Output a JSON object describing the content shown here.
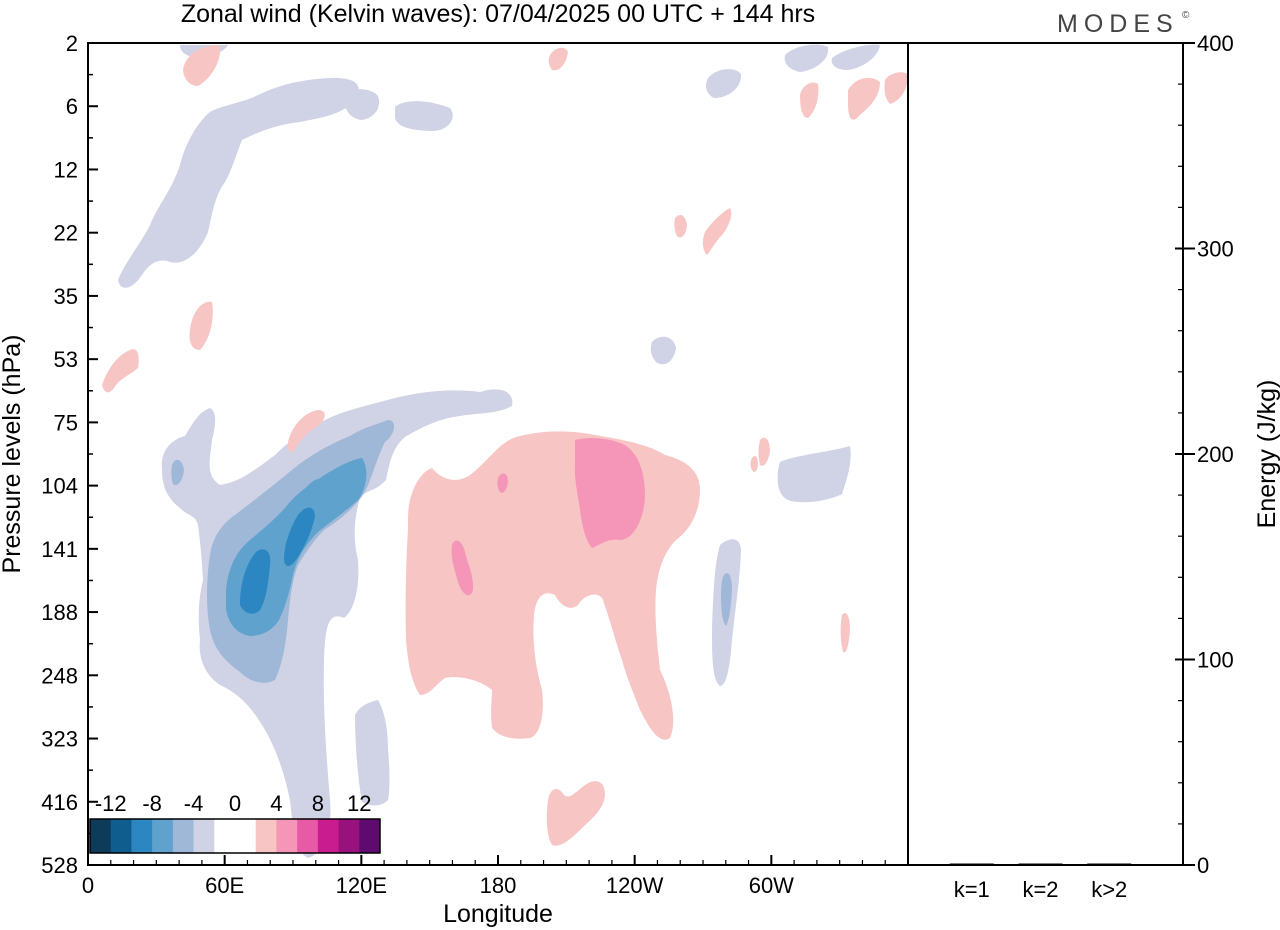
{
  "brand": "MODES",
  "brand_mark": "©",
  "colors": {
    "neg4": "#d0d2e6",
    "neg6": "#9fb8d8",
    "neg8": "#5fa2cd",
    "neg10": "#2c86c1",
    "pos4": "#f7c6c4",
    "pos6": "#f596b8",
    "axis": "#000000",
    "colorbar": [
      "#0d3b5a",
      "#0f5c8e",
      "#2c86c1",
      "#5fa2cd",
      "#9fb8d8",
      "#d0d2e6",
      "#ffffff",
      "#ffffff",
      "#f7c6c4",
      "#f596b8",
      "#e65aa6",
      "#c91d8f",
      "#98127e",
      "#5e0a6e"
    ]
  },
  "chart_data": [
    {
      "type": "heatmap",
      "title": "Zonal wind (Kelvin waves):  07/04/2025  00 UTC  + 144 hrs",
      "xlabel": "Longitude",
      "ylabel": "Pressure levels (hPa)",
      "x_tick_labels": [
        "0",
        "60E",
        "120E",
        "180",
        "120W",
        "60W"
      ],
      "x_ticks_deg": [
        0,
        60,
        120,
        180,
        240,
        300
      ],
      "xlim": [
        0,
        360
      ],
      "y_tick_labels": [
        "2",
        "6",
        "12",
        "22",
        "35",
        "53",
        "75",
        "104",
        "141",
        "188",
        "248",
        "323",
        "416",
        "528"
      ],
      "colorbar": {
        "labels": [
          "-12",
          "-8",
          "-4",
          "0",
          "4",
          "8",
          "12"
        ],
        "levels": [
          -14,
          -12,
          -10,
          -8,
          -6,
          -4,
          -2,
          0,
          2,
          4,
          6,
          8,
          10,
          12,
          14
        ]
      },
      "features": [
        {
          "name": "negative anomaly",
          "sign": "negative",
          "peak": -10,
          "lon_range": [
            50,
            130
          ],
          "pressure_range": [
            75,
            400
          ]
        },
        {
          "name": "positive anomaly",
          "sign": "positive",
          "peak": 6,
          "lon_range": [
            140,
            265
          ],
          "pressure_range": [
            75,
            323
          ]
        },
        {
          "name": "stratospheric negative band",
          "sign": "negative",
          "peak": -4,
          "lon_range": [
            15,
            160
          ],
          "pressure_range": [
            2,
            30
          ]
        }
      ]
    },
    {
      "type": "bar",
      "categories": [
        "k=1",
        "k=2",
        "k>2"
      ],
      "values": [
        0.5,
        0.3,
        0.3
      ],
      "ylabel": "Energy (J/kg)",
      "ylim": [
        0,
        400
      ],
      "y_tick_labels": [
        "0",
        "100",
        "200",
        "300",
        "400"
      ],
      "y_ticks": [
        0,
        100,
        200,
        300,
        400
      ]
    }
  ]
}
